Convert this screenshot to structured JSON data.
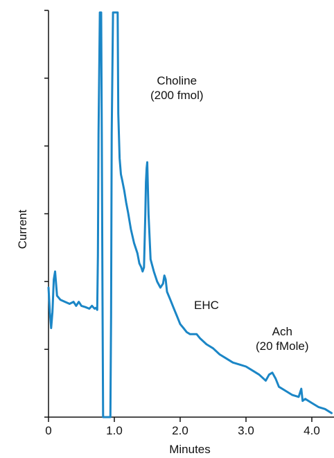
{
  "chart_data": {
    "type": "line",
    "xlabel": "Minutes",
    "ylabel": "Current",
    "xlim": [
      0,
      4.3
    ],
    "x_ticks": [
      0,
      1.0,
      2.0,
      3.0,
      4.0
    ],
    "x_tick_labels": [
      "0",
      "1.0",
      "2.0",
      "3.0",
      "4.0"
    ],
    "y_tick_count": 7,
    "grid": false,
    "line_color": "#1b86c6",
    "series": [
      {
        "x": [
          0,
          0.02,
          0.04,
          0.06,
          0.08,
          0.1,
          0.13,
          0.18,
          0.25,
          0.32,
          0.38,
          0.42,
          0.46,
          0.5,
          0.56,
          0.62,
          0.66,
          0.7,
          0.72,
          0.74,
          0.75,
          0.76,
          0.78,
          0.8,
          0.81,
          0.82,
          0.83,
          0.84,
          0.86,
          0.88,
          0.9,
          0.92,
          0.93,
          0.94,
          0.95,
          0.96,
          0.98,
          1.0,
          1.02,
          1.04,
          1.05,
          1.06,
          1.08,
          1.1,
          1.12,
          1.15,
          1.18,
          1.21,
          1.25,
          1.3,
          1.35,
          1.38,
          1.41,
          1.43,
          1.45,
          1.47,
          1.48,
          1.49,
          1.5,
          1.52,
          1.55,
          1.6,
          1.65,
          1.7,
          1.74,
          1.76,
          1.78,
          1.8,
          1.85,
          1.9,
          1.95,
          2.0,
          2.05,
          2.1,
          2.15,
          2.2,
          2.25,
          2.3,
          2.4,
          2.5,
          2.6,
          2.7,
          2.8,
          2.9,
          3.0,
          3.1,
          3.2,
          3.3,
          3.35,
          3.4,
          3.45,
          3.5,
          3.6,
          3.7,
          3.8,
          3.84,
          3.86,
          3.9,
          4.0,
          4.1,
          4.2,
          4.3
        ],
        "y": [
          32,
          26,
          22,
          26,
          34,
          36,
          30,
          29,
          28.5,
          28,
          28.5,
          27.5,
          28.5,
          27.5,
          27.2,
          26.8,
          27.5,
          26.8,
          27,
          26.5,
          40,
          70,
          100,
          100,
          70,
          30,
          0,
          0,
          0,
          0,
          0,
          0,
          0,
          0,
          25,
          70,
          100,
          100,
          100,
          100,
          100,
          75,
          64,
          60,
          58.5,
          56,
          53,
          50.5,
          46.5,
          43,
          40.5,
          38,
          37,
          36,
          37,
          50,
          58,
          61.5,
          63,
          50,
          39,
          36,
          33.5,
          32,
          33,
          35,
          34,
          31,
          29,
          27,
          25,
          23,
          22,
          21,
          20.5,
          20.5,
          20.5,
          19.5,
          18,
          17,
          15.5,
          14.5,
          13.5,
          13,
          12.5,
          11.5,
          10.5,
          9,
          10.5,
          11,
          9.5,
          7.5,
          6.5,
          5.5,
          5,
          7,
          4,
          4.5,
          3.5,
          2.5,
          2,
          1
        ]
      }
    ],
    "annotations": [
      {
        "text": "Choline",
        "x": 1.95,
        "y": 83
      },
      {
        "text": "(200 fmol)",
        "x": 1.95,
        "y": 79.5
      },
      {
        "text": "EHC",
        "x": 2.4,
        "y": 27.5
      },
      {
        "text": "Ach",
        "x": 3.55,
        "y": 21
      },
      {
        "text": "(20 fMole)",
        "x": 3.55,
        "y": 17.5
      }
    ]
  }
}
